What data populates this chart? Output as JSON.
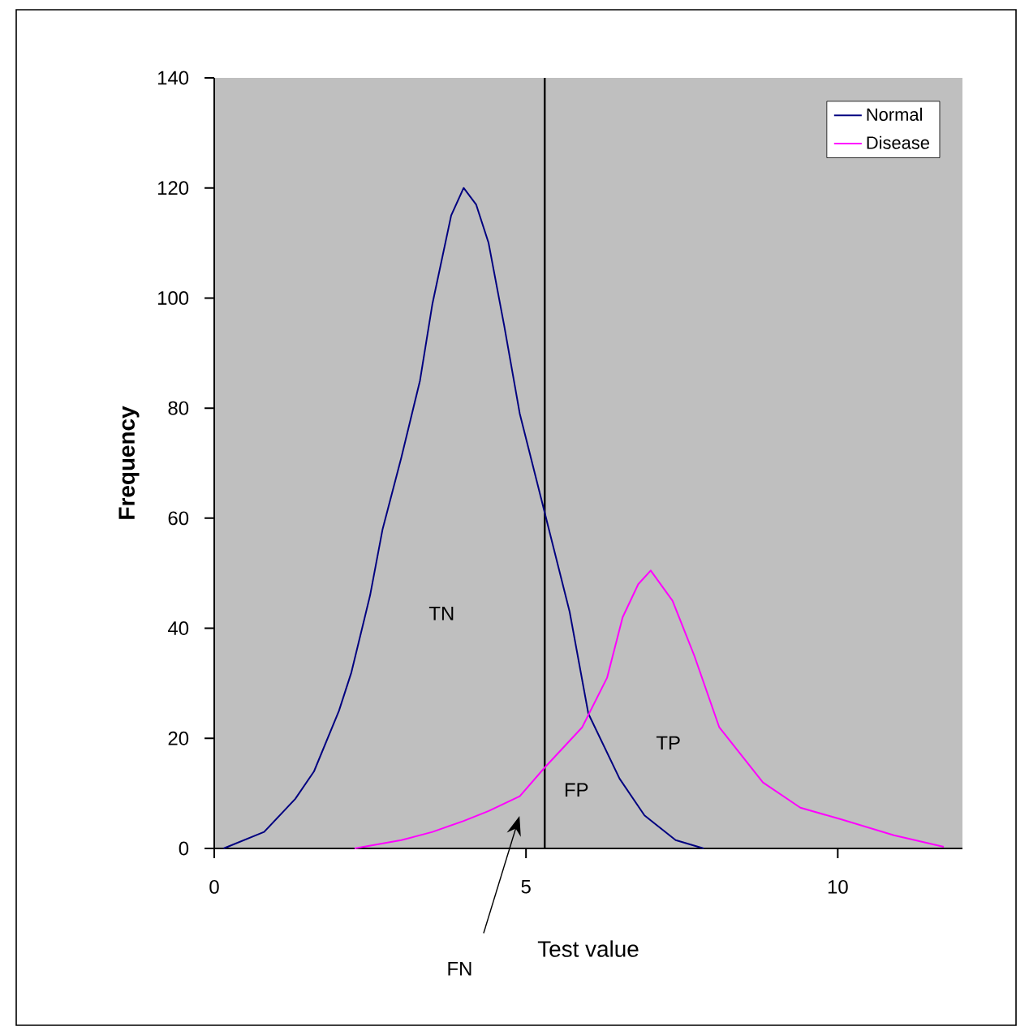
{
  "chart_data": {
    "type": "line",
    "xlabel": "Test value",
    "ylabel": "Frequency",
    "xlim": [
      0,
      12
    ],
    "ylim": [
      0,
      140
    ],
    "xticks": [
      0,
      5,
      10
    ],
    "yticks": [
      0,
      20,
      40,
      60,
      80,
      100,
      120,
      140
    ],
    "legend": "top right",
    "series": [
      {
        "name": "Normal",
        "color": "#000080",
        "x": [
          0.15,
          0.8,
          1.3,
          1.6,
          2.0,
          2.2,
          2.5,
          2.7,
          3.0,
          3.3,
          3.5,
          3.8,
          4.0,
          4.2,
          4.4,
          4.65,
          4.9,
          5.3,
          5.7,
          6.0,
          6.5,
          6.9,
          7.4,
          7.85
        ],
        "values": [
          0,
          3,
          9,
          14,
          25,
          32,
          46,
          58,
          71,
          85,
          99,
          115,
          120,
          117,
          110,
          95,
          79,
          61,
          43,
          24.5,
          12.7,
          6,
          1.5,
          0
        ]
      },
      {
        "name": "Disease",
        "color": "#ff00ff",
        "x": [
          2.25,
          3.0,
          3.5,
          4.0,
          4.4,
          4.9,
          5.3,
          5.9,
          6.3,
          6.55,
          6.8,
          7.0,
          7.35,
          7.7,
          8.1,
          8.8,
          9.4,
          10.05,
          10.9,
          11.7
        ],
        "values": [
          0,
          1.5,
          3,
          5,
          6.8,
          9.5,
          14.7,
          22,
          31,
          42,
          48,
          50.5,
          45,
          35,
          22,
          12,
          7.4,
          5.3,
          2.4,
          0.3
        ]
      }
    ],
    "ref_lines": [
      {
        "axis": "x",
        "value": 5.3,
        "color": "#000000"
      }
    ],
    "annotations": [
      "TN",
      "FP",
      "TP",
      "FN"
    ]
  }
}
